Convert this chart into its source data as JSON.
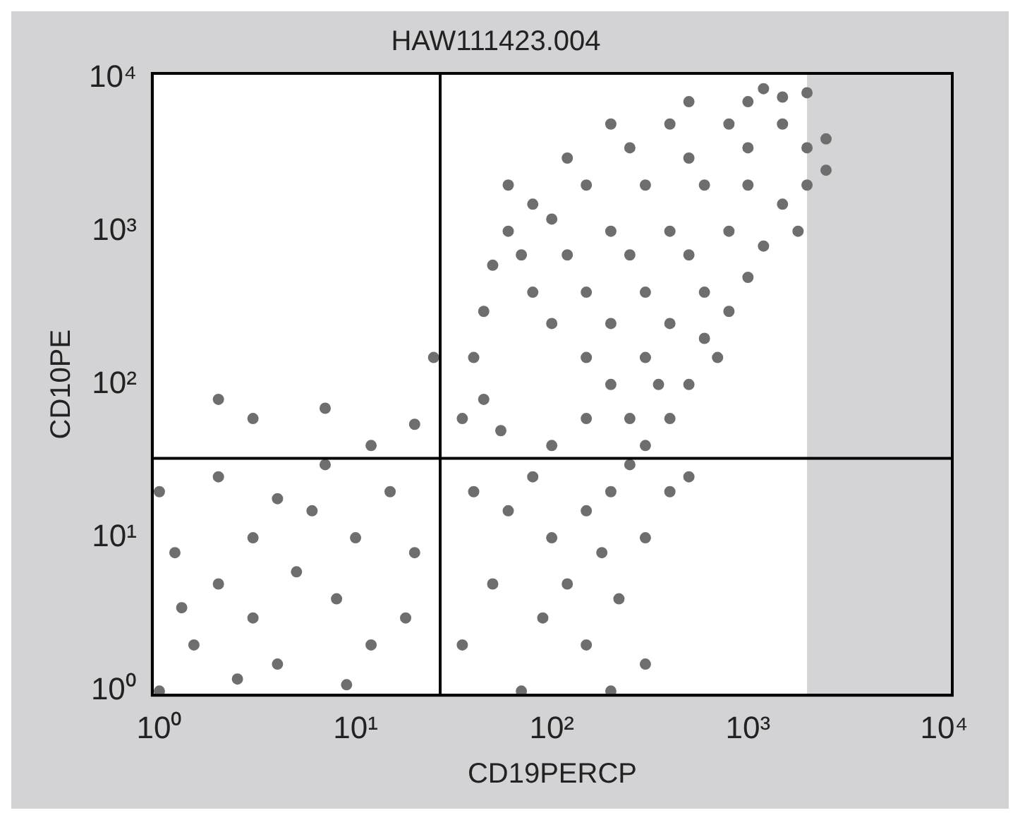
{
  "chart_data": {
    "type": "scatter",
    "title": "HAW111423.004",
    "xlabel": "CD19PERCP",
    "ylabel": "CD10PE",
    "log": "xy",
    "grid": false,
    "legend": false,
    "marker": "circle",
    "xlim": [
      0.92,
      11000
    ],
    "ylim": [
      0.94,
      10700
    ],
    "xticks": [
      {
        "value": 1,
        "label": "10⁰"
      },
      {
        "value": 10,
        "label": "10¹"
      },
      {
        "value": 100,
        "label": "10²"
      },
      {
        "value": 1000,
        "label": "10³"
      },
      {
        "value": 10000,
        "label": "10⁴"
      }
    ],
    "yticks": [
      {
        "value": 1,
        "label": "10⁰"
      },
      {
        "value": 10,
        "label": "10¹"
      },
      {
        "value": 100,
        "label": "10²"
      },
      {
        "value": 1000,
        "label": "10³"
      },
      {
        "value": 10000,
        "label": "10⁴"
      }
    ],
    "ref_lines": [
      {
        "axis": "x",
        "value": 27,
        "color": "#000000"
      },
      {
        "axis": "y",
        "value": 33,
        "color": "#000000"
      }
    ],
    "bands": [
      {
        "axis": "x",
        "from": 2000,
        "to": 11000,
        "color": "#d4d4d6"
      }
    ],
    "series": [
      {
        "color": "#6e6e6e",
        "x": [
          300,
          250,
          400,
          200,
          350,
          500,
          150,
          300,
          600,
          100,
          200,
          400,
          800,
          80,
          150,
          300,
          600,
          1000,
          70,
          120,
          250,
          500,
          1200,
          60,
          100,
          200,
          400,
          800,
          1500,
          80,
          150,
          300,
          600,
          1000,
          2000,
          120,
          250,
          500,
          1000,
          2000,
          200,
          400,
          800,
          1500,
          2500,
          500,
          1000,
          1500,
          2000,
          1200,
          60,
          50,
          45,
          40,
          45,
          55,
          35,
          100,
          2500,
          1800,
          700,
          150,
          40,
          60,
          80,
          100,
          150,
          200,
          250,
          120,
          180,
          90,
          150,
          220,
          300,
          400,
          500,
          70,
          200,
          300,
          50,
          35,
          1,
          1.5,
          2,
          3,
          1,
          1.2,
          2,
          3,
          4,
          5,
          6,
          8,
          10,
          12,
          15,
          20,
          7,
          1.3,
          2.5,
          9,
          18,
          4,
          3,
          7,
          2,
          12,
          20,
          25
        ],
        "values": [
          40,
          60,
          60,
          100,
          100,
          100,
          150,
          150,
          200,
          250,
          250,
          250,
          300,
          400,
          400,
          400,
          400,
          500,
          700,
          700,
          700,
          700,
          800,
          1000,
          1200,
          1000,
          1000,
          1000,
          1500,
          1500,
          2000,
          2000,
          2000,
          2000,
          2000,
          3000,
          3500,
          3000,
          3500,
          3500,
          5000,
          5000,
          5000,
          5000,
          4000,
          7000,
          7000,
          7500,
          8000,
          8500,
          2000,
          600,
          300,
          150,
          80,
          50,
          60,
          40,
          2500,
          1000,
          150,
          60,
          20,
          15,
          25,
          10,
          15,
          20,
          30,
          5,
          8,
          3,
          2,
          4,
          10,
          20,
          25,
          1,
          1,
          1.5,
          5,
          2,
          1,
          2,
          5,
          10,
          20,
          8,
          25,
          3,
          1.5,
          6,
          15,
          4,
          10,
          2,
          20,
          8,
          30,
          3.5,
          1.2,
          1.1,
          3,
          18,
          60,
          70,
          80,
          40,
          55,
          150
        ]
      }
    ]
  }
}
